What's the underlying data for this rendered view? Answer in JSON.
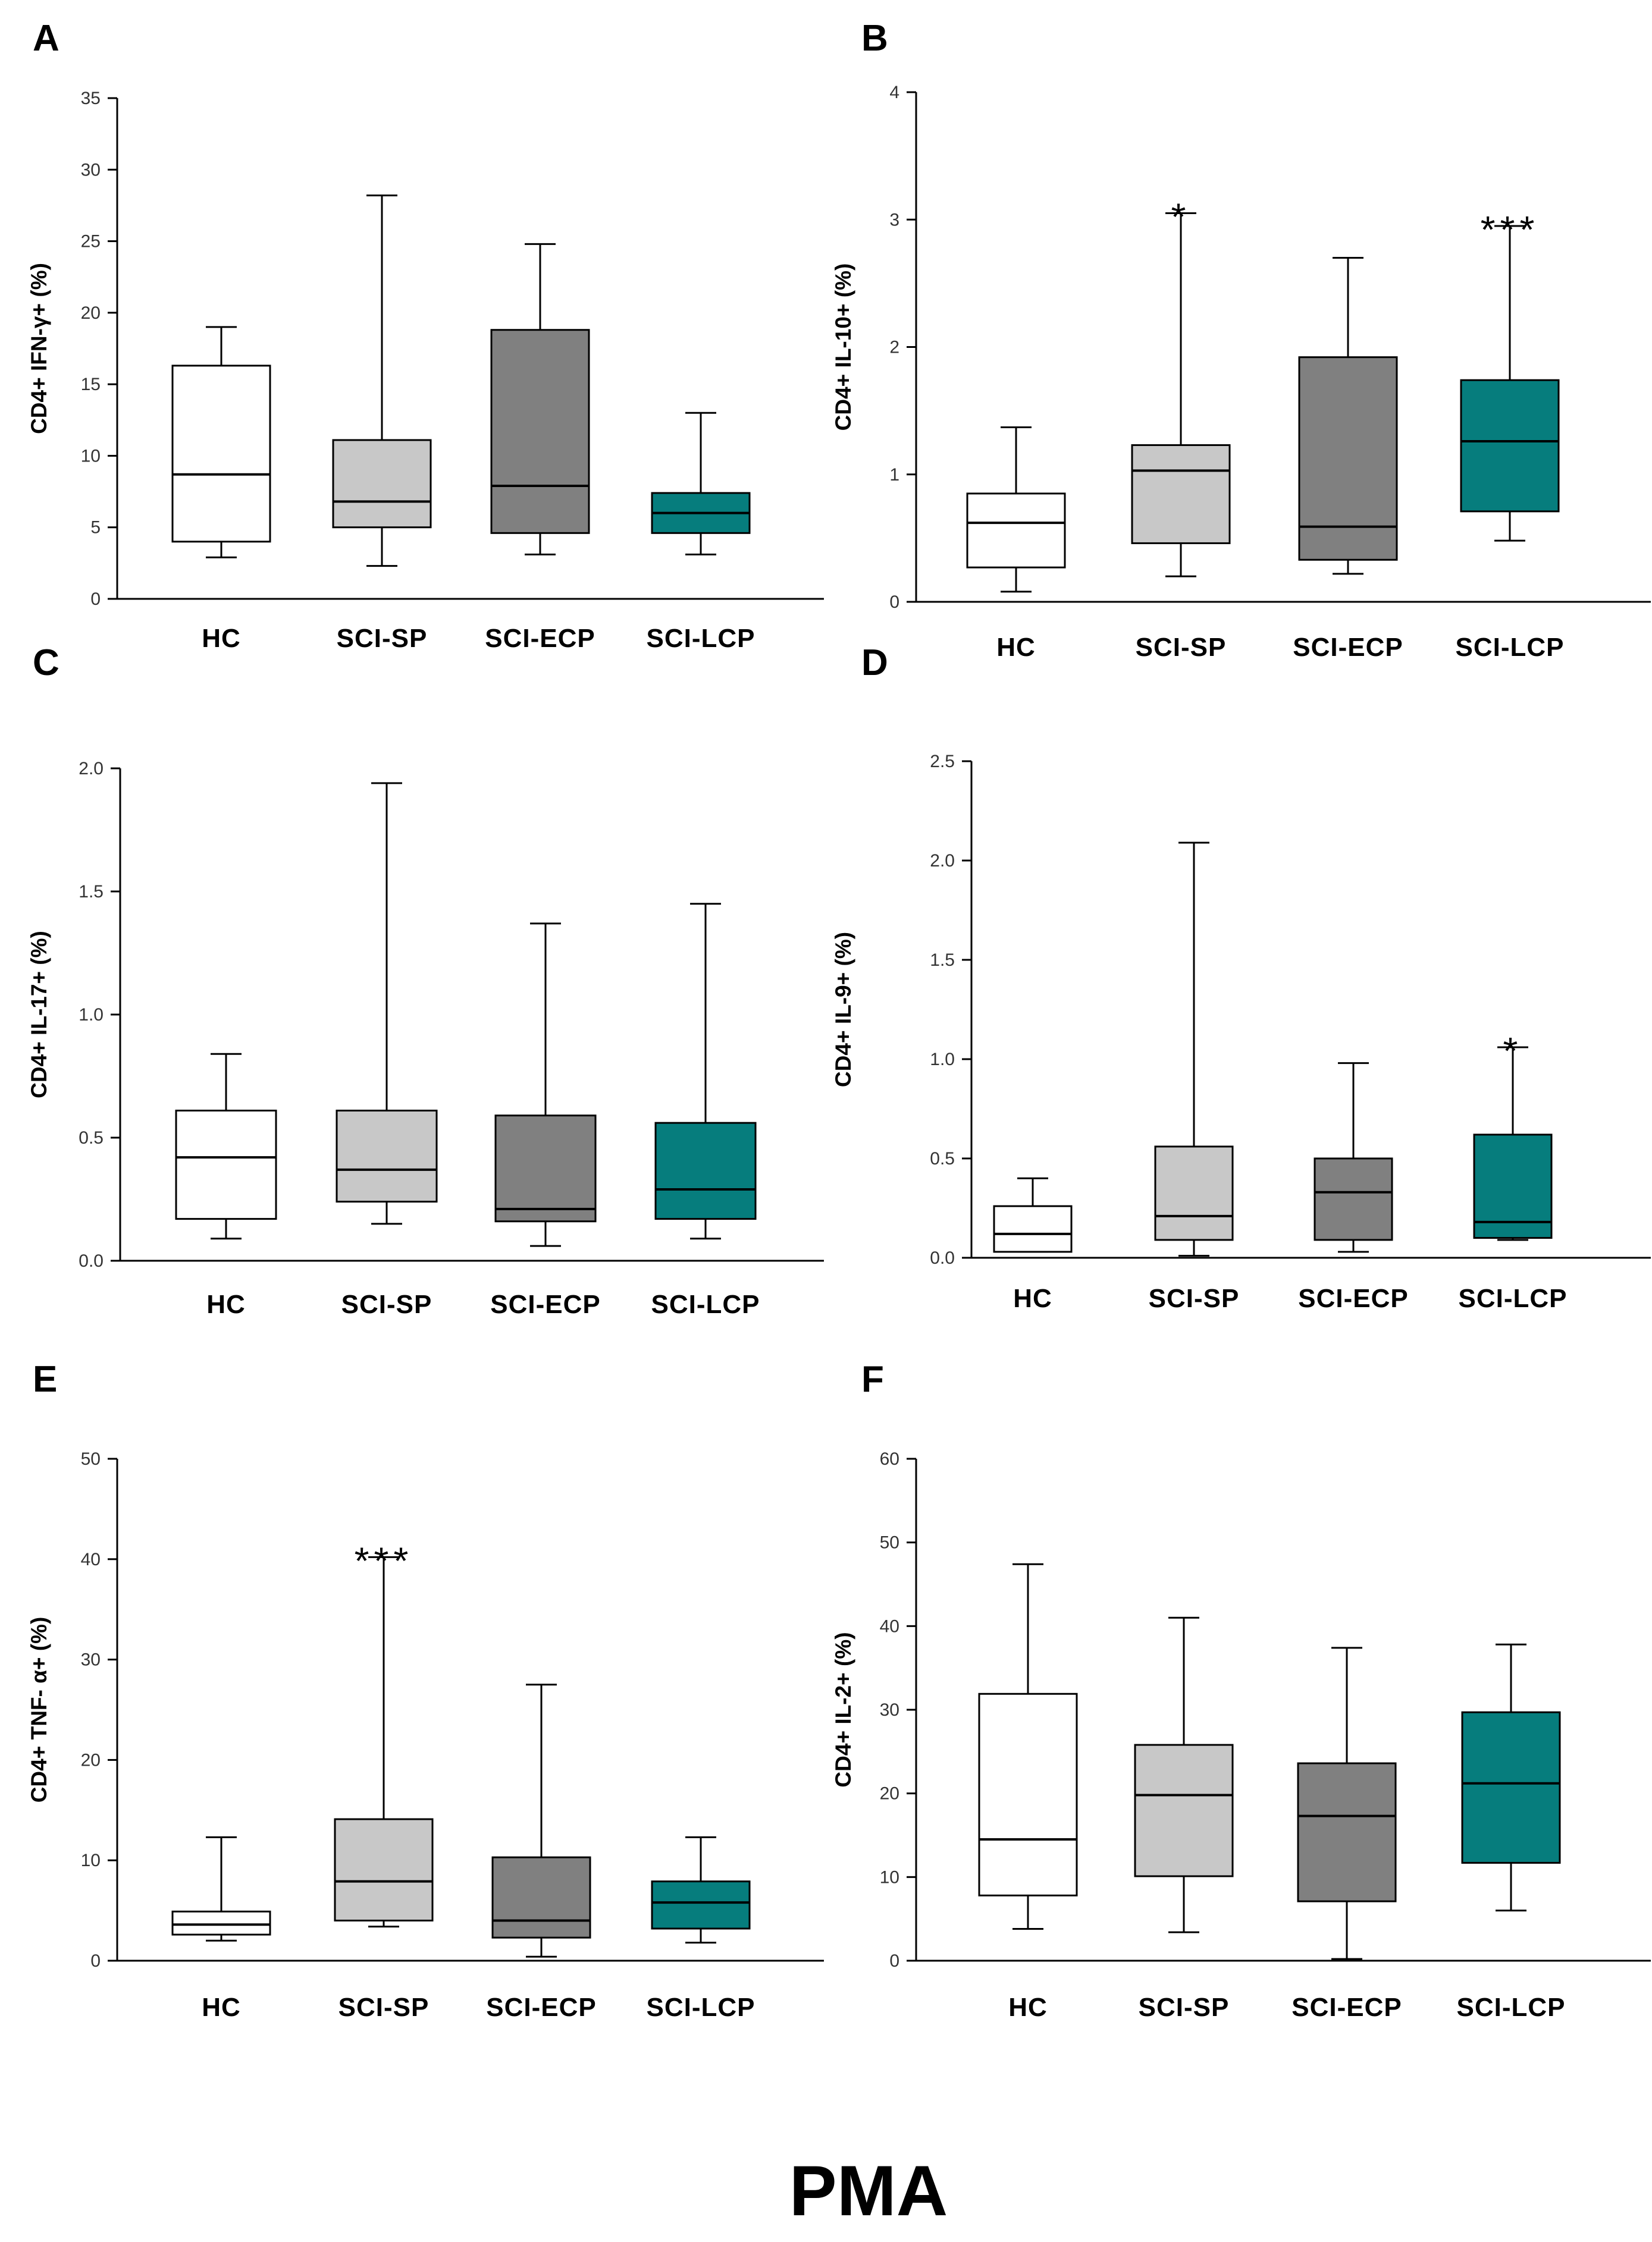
{
  "figure_caption": "PMA",
  "colors": {
    "HC": "#ffffff",
    "SCI-SP": "#c8c8c8",
    "SCI-ECP": "#808080",
    "SCI-LCP": "#067d7d",
    "line": "#000000"
  },
  "chart_data": [
    {
      "panel": "A",
      "type": "box",
      "ylabel": "CD4+ IFN-γ+ (%)",
      "ylim": [
        0,
        35
      ],
      "yticks": [
        0,
        5,
        10,
        15,
        20,
        25,
        30,
        35
      ],
      "ytick_labels": [
        "0",
        "5",
        "10",
        "15",
        "20",
        "25",
        "30",
        "35"
      ],
      "categories": [
        "HC",
        "SCI-SP",
        "SCI-ECP",
        "SCI-LCP"
      ],
      "boxes": [
        {
          "min": 2.9,
          "q1": 4.0,
          "median": 8.7,
          "q3": 16.3,
          "max": 19.0,
          "sig": ""
        },
        {
          "min": 2.3,
          "q1": 5.0,
          "median": 6.8,
          "q3": 11.1,
          "max": 28.2,
          "sig": ""
        },
        {
          "min": 3.1,
          "q1": 4.6,
          "median": 7.9,
          "q3": 18.8,
          "max": 24.8,
          "sig": ""
        },
        {
          "min": 3.1,
          "q1": 4.6,
          "median": 6.0,
          "q3": 7.4,
          "max": 13.0,
          "sig": ""
        }
      ]
    },
    {
      "panel": "B",
      "type": "box",
      "ylabel": "CD4+ IL-10+ (%)",
      "ylim": [
        0,
        4
      ],
      "yticks": [
        0,
        1,
        2,
        3,
        4
      ],
      "ytick_labels": [
        "0",
        "1",
        "2",
        "3",
        "4"
      ],
      "categories": [
        "HC",
        "SCI-SP",
        "SCI-ECP",
        "SCI-LCP"
      ],
      "boxes": [
        {
          "min": 0.08,
          "q1": 0.27,
          "median": 0.62,
          "q3": 0.85,
          "max": 1.37,
          "sig": ""
        },
        {
          "min": 0.2,
          "q1": 0.46,
          "median": 1.03,
          "q3": 1.23,
          "max": 3.05,
          "sig": "*"
        },
        {
          "min": 0.22,
          "q1": 0.33,
          "median": 0.59,
          "q3": 1.92,
          "max": 2.7,
          "sig": ""
        },
        {
          "min": 0.48,
          "q1": 0.71,
          "median": 1.26,
          "q3": 1.74,
          "max": 2.95,
          "sig": "***"
        }
      ]
    },
    {
      "panel": "C",
      "type": "box",
      "ylabel": "CD4+ IL-17+ (%)",
      "ylim": [
        0,
        2
      ],
      "yticks": [
        0,
        0.5,
        1,
        1.5,
        2
      ],
      "ytick_labels": [
        "0.0",
        "0.5",
        "1.0",
        "1.5",
        "2.0"
      ],
      "categories": [
        "HC",
        "SCI-SP",
        "SCI-ECP",
        "SCI-LCP"
      ],
      "boxes": [
        {
          "min": 0.09,
          "q1": 0.17,
          "median": 0.42,
          "q3": 0.61,
          "max": 0.84,
          "sig": ""
        },
        {
          "min": 0.15,
          "q1": 0.24,
          "median": 0.37,
          "q3": 0.61,
          "max": 1.94,
          "sig": ""
        },
        {
          "min": 0.06,
          "q1": 0.16,
          "median": 0.21,
          "q3": 0.59,
          "max": 1.37,
          "sig": ""
        },
        {
          "min": 0.09,
          "q1": 0.17,
          "median": 0.29,
          "q3": 0.56,
          "max": 1.45,
          "sig": ""
        }
      ]
    },
    {
      "panel": "D",
      "type": "box",
      "ylabel": "CD4+ IL-9+ (%)",
      "ylim": [
        0,
        2.5
      ],
      "yticks": [
        0,
        0.5,
        1,
        1.5,
        2,
        2.5
      ],
      "ytick_labels": [
        "0.0",
        "0.5",
        "1.0",
        "1.5",
        "2.0",
        "2.5"
      ],
      "categories": [
        "HC",
        "SCI-SP",
        "SCI-ECP",
        "SCI-LCP"
      ],
      "boxes": [
        {
          "min": 0.03,
          "q1": 0.03,
          "median": 0.12,
          "q3": 0.26,
          "max": 0.4,
          "sig": ""
        },
        {
          "min": 0.01,
          "q1": 0.09,
          "median": 0.21,
          "q3": 0.56,
          "max": 2.09,
          "sig": ""
        },
        {
          "min": 0.03,
          "q1": 0.09,
          "median": 0.33,
          "q3": 0.5,
          "max": 0.98,
          "sig": ""
        },
        {
          "min": 0.09,
          "q1": 0.1,
          "median": 0.18,
          "q3": 0.62,
          "max": 1.06,
          "sig": "*"
        }
      ]
    },
    {
      "panel": "E",
      "type": "box",
      "ylabel": "CD4+ TNF- α+ (%)",
      "ylim": [
        0,
        50
      ],
      "yticks": [
        0,
        10,
        20,
        30,
        40,
        50
      ],
      "ytick_labels": [
        "0",
        "10",
        "20",
        "30",
        "40",
        "50"
      ],
      "categories": [
        "HC",
        "SCI-SP",
        "SCI-ECP",
        "SCI-LCP"
      ],
      "boxes": [
        {
          "min": 2.0,
          "q1": 2.6,
          "median": 3.6,
          "q3": 4.9,
          "max": 12.3,
          "sig": ""
        },
        {
          "min": 3.4,
          "q1": 4.0,
          "median": 7.9,
          "q3": 14.1,
          "max": 40.2,
          "sig": "***"
        },
        {
          "min": 0.4,
          "q1": 2.3,
          "median": 4.0,
          "q3": 10.3,
          "max": 27.5,
          "sig": ""
        },
        {
          "min": 1.8,
          "q1": 3.2,
          "median": 5.8,
          "q3": 7.9,
          "max": 12.3,
          "sig": ""
        }
      ]
    },
    {
      "panel": "F",
      "type": "box",
      "ylabel": "CD4+ IL-2+ (%)",
      "ylim": [
        0,
        60
      ],
      "yticks": [
        0,
        10,
        20,
        30,
        40,
        50,
        60
      ],
      "ytick_labels": [
        "0",
        "10",
        "20",
        "30",
        "40",
        "50",
        "60"
      ],
      "categories": [
        "HC",
        "SCI-SP",
        "SCI-ECP",
        "SCI-LCP"
      ],
      "boxes": [
        {
          "min": 3.8,
          "q1": 7.8,
          "median": 14.5,
          "q3": 31.9,
          "max": 47.4,
          "sig": ""
        },
        {
          "min": 3.4,
          "q1": 10.1,
          "median": 19.8,
          "q3": 25.8,
          "max": 41.0,
          "sig": ""
        },
        {
          "min": 0.2,
          "q1": 7.1,
          "median": 17.3,
          "q3": 23.6,
          "max": 37.4,
          "sig": ""
        },
        {
          "min": 6.0,
          "q1": 11.7,
          "median": 21.2,
          "q3": 29.7,
          "max": 37.8,
          "sig": ""
        }
      ]
    }
  ]
}
